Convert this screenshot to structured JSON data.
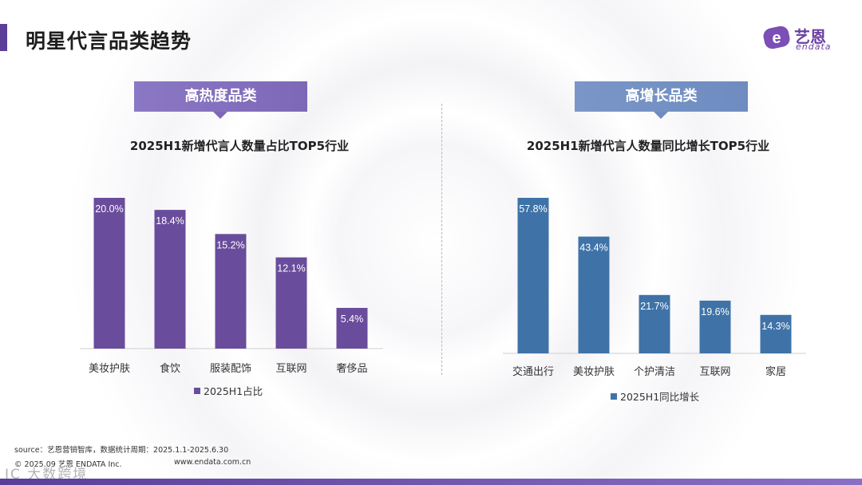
{
  "header": {
    "title": "明星代言品类趋势",
    "logo_cn": "艺恩",
    "logo_en": "endata"
  },
  "tags": {
    "left": "高热度品类",
    "right": "高增长品类"
  },
  "colors": {
    "left_bar": "#6a4c9c",
    "right_bar": "#3f73a8",
    "accent": "#5a3e98"
  },
  "chart_data": [
    {
      "type": "bar",
      "title": "2025H1新增代言人数量占比TOP5行业",
      "categories": [
        "美妆护肤",
        "食饮",
        "服装配饰",
        "互联网",
        "奢侈品"
      ],
      "series": [
        {
          "name": "2025H1占比",
          "values": [
            20.0,
            18.4,
            15.2,
            12.1,
            5.4
          ]
        }
      ],
      "labels": [
        "20.0%",
        "18.4%",
        "15.2%",
        "12.1%",
        "5.4%"
      ],
      "ylim": [
        0,
        20
      ],
      "legend": "bottom"
    },
    {
      "type": "bar",
      "title": "2025H1新增代言人数量同比增长TOP5行业",
      "categories": [
        "交通出行",
        "美妆护肤",
        "个护清洁",
        "互联网",
        "家居"
      ],
      "series": [
        {
          "name": "2025H1同比增长",
          "values": [
            57.8,
            43.4,
            21.7,
            19.6,
            14.3
          ]
        }
      ],
      "labels": [
        "57.8%",
        "43.4%",
        "21.7%",
        "19.6%",
        "14.3%"
      ],
      "ylim": [
        0,
        57.8
      ],
      "legend": "bottom"
    }
  ],
  "footer": {
    "source": "source：艺恩营销智库，数据统计周期：2025.1.1-2025.6.30",
    "copyright": "© 2025.09 艺恩 ENDATA Inc.",
    "url": "www.endata.com.cn",
    "watermark": "IC 大数跨境"
  }
}
